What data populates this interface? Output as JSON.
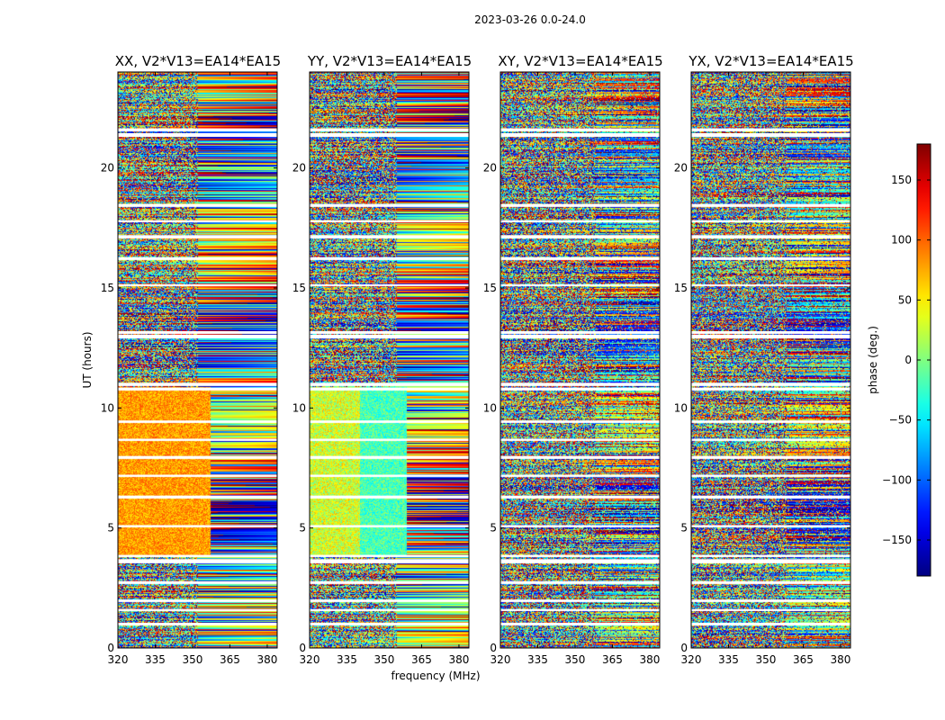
{
  "chart_data": {
    "type": "heatmap",
    "title": "2023-03-26 0.0-24.0",
    "xlabel": "frequency (MHz)",
    "ylabel": "UT (hours)",
    "xlim": [
      320,
      384
    ],
    "ylim": [
      0,
      24
    ],
    "xticks": [
      320,
      335,
      350,
      365,
      380
    ],
    "yticks": [
      0,
      5,
      10,
      15,
      20
    ],
    "colormap": "jet",
    "colorbar": {
      "label": "phase (deg.)",
      "range": [
        -180,
        180
      ],
      "ticks": [
        150,
        100,
        50,
        0,
        -50,
        -100,
        -150
      ],
      "tick_labels": [
        "150",
        "100",
        "50",
        "0",
        "−50",
        "−100",
        "−150"
      ]
    },
    "panels": [
      {
        "title": "XX, V2*V13=EA14*EA15",
        "pattern": "xx"
      },
      {
        "title": "YY, V2*V13=EA14*EA15",
        "pattern": "yy"
      },
      {
        "title": "XY, V2*V13=EA14*EA15",
        "pattern": "cross"
      },
      {
        "title": "YX, V2*V13=EA14*EA15",
        "pattern": "cross"
      }
    ],
    "flagged_ut_gaps": [
      [
        0.95,
        1.05
      ],
      [
        1.55,
        1.62
      ],
      [
        1.93,
        2.02
      ],
      [
        2.7,
        2.78
      ],
      [
        3.55,
        3.7
      ],
      [
        3.8,
        3.88
      ],
      [
        5.05,
        5.12
      ],
      [
        6.25,
        6.35
      ],
      [
        7.15,
        7.22
      ],
      [
        7.9,
        8.0
      ],
      [
        8.65,
        8.72
      ],
      [
        9.4,
        9.48
      ],
      [
        10.75,
        10.85
      ],
      [
        10.95,
        11.05
      ],
      [
        12.9,
        13.05
      ],
      [
        13.1,
        13.2
      ],
      [
        15.1,
        15.15
      ],
      [
        16.2,
        16.28
      ],
      [
        17.1,
        17.2
      ],
      [
        17.75,
        17.82
      ],
      [
        18.4,
        18.5
      ],
      [
        21.3,
        21.45
      ],
      [
        21.55,
        21.65
      ]
    ]
  }
}
